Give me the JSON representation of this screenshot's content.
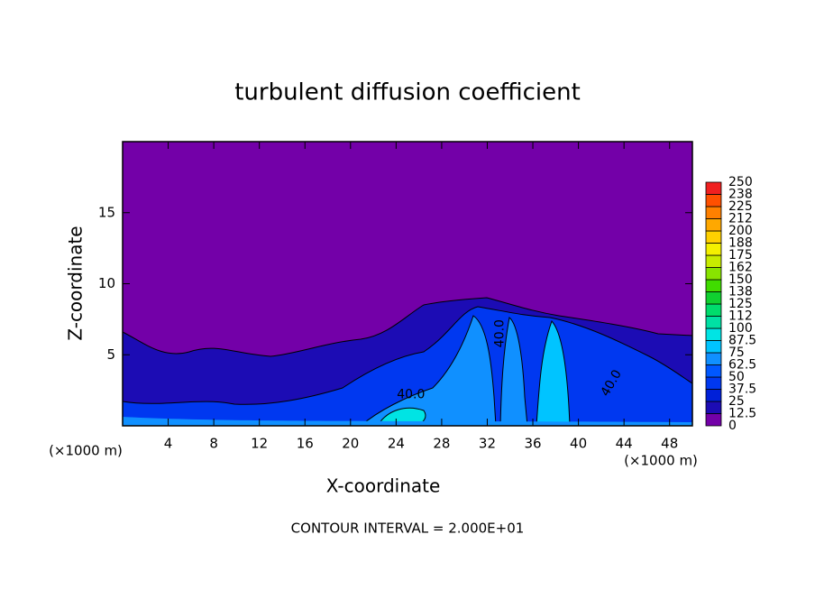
{
  "chart_data": {
    "type": "contour",
    "title": "turbulent diffusion coefficient",
    "xlabel": "X-coordinate",
    "ylabel": "Z-coordinate",
    "x_unit": "(×1000 m)",
    "footnote": "CONTOUR INTERVAL = 2.000E+01",
    "xlim": [
      0,
      50
    ],
    "ylim": [
      0,
      20
    ],
    "xticks": [
      4,
      8,
      12,
      16,
      20,
      24,
      28,
      32,
      36,
      40,
      44,
      48
    ],
    "yticks": [
      5,
      10,
      15
    ],
    "colorbar": {
      "levels": [
        0,
        12.5,
        25,
        37.5,
        50,
        62.5,
        75,
        87.5,
        100,
        112,
        125,
        138,
        150,
        162,
        175,
        188,
        200,
        212,
        225,
        238,
        250
      ],
      "colors": [
        "#7300a8",
        "#1c0cb4",
        "#0020d8",
        "#0038f0",
        "#0058ff",
        "#1090ff",
        "#00c4ff",
        "#00e4e4",
        "#00e0a4",
        "#00dc6c",
        "#10d030",
        "#40dc00",
        "#88e400",
        "#c8ec00",
        "#f4f000",
        "#ffd000",
        "#ffa800",
        "#ff8000",
        "#ff5000",
        "#f02020"
      ]
    },
    "contour_labels": [
      {
        "text": "40.0",
        "x": 25.3,
        "z": 2.2
      },
      {
        "text": "40.0",
        "x": 33.1,
        "z": 6.5
      },
      {
        "text": "40.0",
        "x": 42.9,
        "z": 3.0
      }
    ]
  }
}
